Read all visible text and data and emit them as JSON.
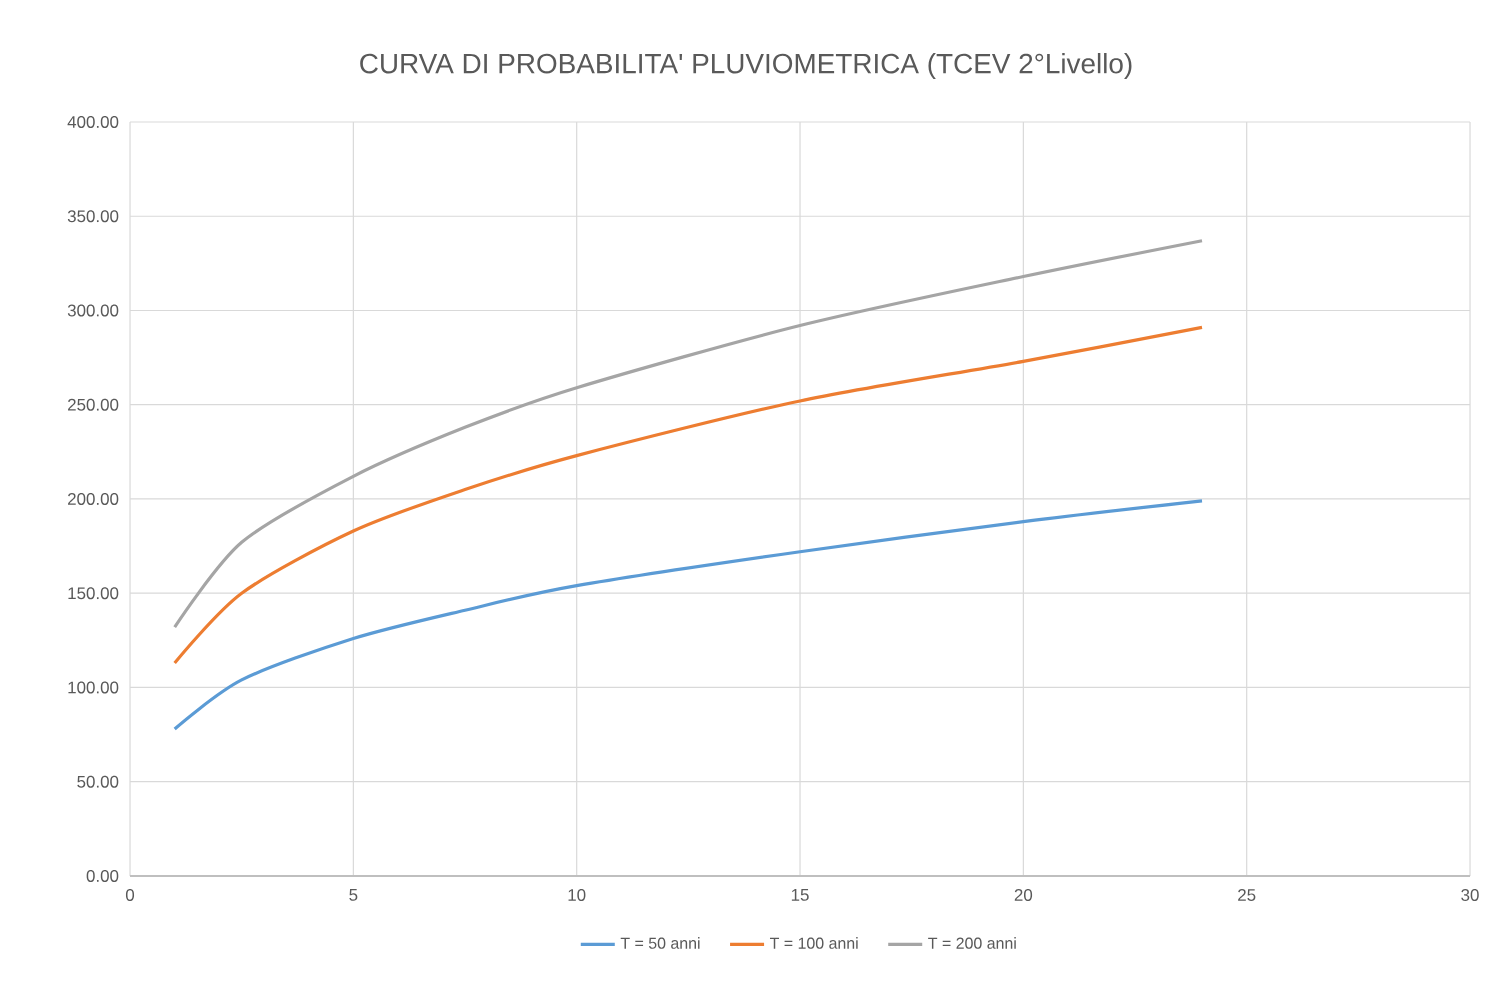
{
  "chart_data": {
    "type": "line",
    "title": "CURVA DI PROBABILITA' PLUVIOMETRICA (TCEV 2°Livello)",
    "series": [
      {
        "name": "T = 50 anni",
        "color": "#5b9bd5",
        "x": [
          1,
          2.5,
          5,
          7.5,
          10,
          15,
          20,
          24
        ],
        "values": [
          78,
          104,
          126,
          141,
          154,
          172,
          188,
          199
        ]
      },
      {
        "name": "T = 100 anni",
        "color": "#ed7d31",
        "x": [
          1,
          2.5,
          5,
          7.5,
          10,
          15,
          20,
          24
        ],
        "values": [
          113,
          150,
          183,
          205,
          223,
          252,
          273,
          291
        ]
      },
      {
        "name": "T = 200 anni",
        "color": "#a5a5a5",
        "x": [
          1,
          2.5,
          5,
          7.5,
          10,
          15,
          20,
          24
        ],
        "values": [
          132,
          177,
          212,
          238,
          259,
          292,
          318,
          337
        ]
      }
    ],
    "xlim": [
      0,
      30
    ],
    "xticks": [
      0,
      5,
      10,
      15,
      20,
      25,
      30
    ],
    "ylim": [
      0,
      400
    ],
    "yticks": [
      {
        "value": 0,
        "label": "0.00"
      },
      {
        "value": 50,
        "label": "50.00"
      },
      {
        "value": 100,
        "label": "100.00"
      },
      {
        "value": 150,
        "label": "150.00"
      },
      {
        "value": 200,
        "label": "200.00"
      },
      {
        "value": 250,
        "label": "250.00"
      },
      {
        "value": 300,
        "label": "300.00"
      },
      {
        "value": 350,
        "label": "350.00"
      },
      {
        "value": 400,
        "label": "400.00"
      }
    ],
    "grid": true,
    "legend": "bottom",
    "marker": "none",
    "line_style": "solid"
  }
}
